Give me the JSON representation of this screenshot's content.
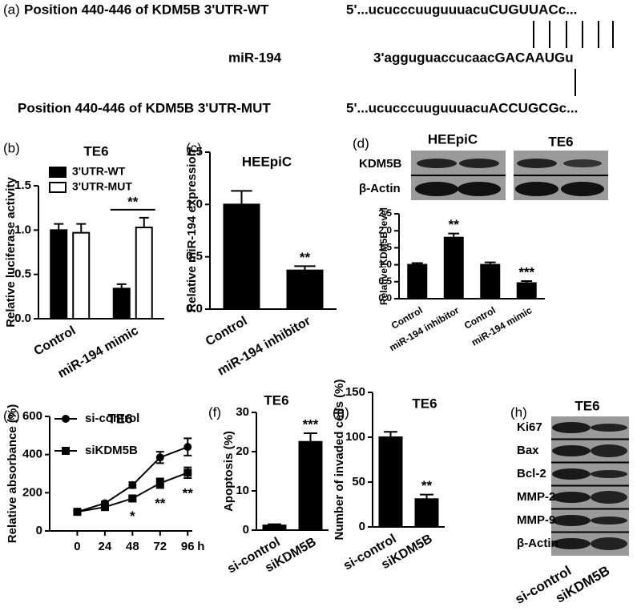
{
  "sequence": {
    "panel": "(a)",
    "rows": [
      {
        "label": "Position 440-446 of KDM5B 3'UTR-WT",
        "sequence": "5'...ucucccuuguuuacuCUGUUACc..."
      },
      {
        "label": "miR-194",
        "sequence": "3'agguguaccucaacGACAAUGu"
      },
      {
        "label": "Position 440-446 of KDM5B 3'UTR-MUT",
        "sequence": "5'...ucucccuuguuuacuACCUGCGc..."
      }
    ]
  },
  "blots": {
    "d": {
      "panel": "(d)",
      "titles": [
        "HEEpiC",
        "TE6"
      ],
      "rows": [
        "KDM5B",
        "β-Actin"
      ]
    },
    "h": {
      "panel": "(h)",
      "title": "TE6",
      "rows": [
        "Ki67",
        "Bax",
        "Bcl-2",
        "MMP-2",
        "MMP-9",
        "β-Actin"
      ],
      "columns": [
        "si-control",
        "siKDM5B"
      ]
    }
  },
  "chart_data": [
    {
      "type": "bar",
      "panel": "(b)",
      "title": "TE6",
      "y_label": "Relative luciferase activity",
      "categories": [
        "Control",
        "miR-194 mimic"
      ],
      "series": [
        {
          "name": "3'UTR-WT",
          "color": "#000000",
          "values": [
            1.0,
            0.34
          ],
          "errors": [
            0.07,
            0.05
          ]
        },
        {
          "name": "3'UTR-MUT",
          "color": "#ffffff",
          "values": [
            0.97,
            1.03
          ],
          "errors": [
            0.1,
            0.11
          ]
        }
      ],
      "significance": [
        null,
        "**"
      ],
      "ylim": [
        0,
        1.5
      ],
      "yticks": [
        {
          "value": 0,
          "label": "0.0"
        },
        0.5,
        {
          "value": 1,
          "label": "1.0"
        },
        1.5
      ]
    },
    {
      "type": "bar",
      "panel": "(c)",
      "title": "HEEpiC",
      "y_label": "Relative miR-194 expression",
      "categories": [
        "Control",
        "miR-194 inhibitor"
      ],
      "color": "#000000",
      "values": [
        1.0,
        0.37
      ],
      "errors": [
        0.13,
        0.04
      ],
      "significance": [
        null,
        "**"
      ],
      "ylim": [
        0,
        1.5
      ],
      "yticks": [
        {
          "value": 0,
          "label": "0.0"
        },
        0.5,
        {
          "value": 1,
          "label": "1.0"
        },
        1.5
      ]
    },
    {
      "type": "bar",
      "y_label": "Relative KDM5B level",
      "categories": [
        "Control",
        "miR-194 inhibitor",
        "Control",
        "miR-194 mimic"
      ],
      "color": "#000000",
      "values": [
        1.0,
        1.8,
        1.0,
        0.46
      ],
      "errors": [
        0.05,
        0.12,
        0.07,
        0.06
      ],
      "significance": [
        null,
        "**",
        null,
        "***"
      ],
      "ylim": [
        0,
        2.5
      ],
      "yticks": [
        {
          "value": 0,
          "label": "0.0"
        },
        0.5,
        {
          "value": 1,
          "label": "1.0"
        },
        1.5,
        {
          "value": 2,
          "label": "2.0"
        },
        2.5
      ]
    },
    {
      "type": "line",
      "panel": "(e)",
      "title": "TE6",
      "y_label": "Relative absorbance (%)",
      "x_unit": "h",
      "x": [
        0,
        24,
        48,
        72,
        96
      ],
      "series": [
        {
          "name": "si-control",
          "color": "#000000",
          "marker": "circle",
          "values": [
            100,
            145,
            240,
            385,
            440
          ],
          "errors": [
            5,
            10,
            15,
            30,
            45
          ]
        },
        {
          "name": "siKDM5B",
          "color": "#000000",
          "marker": "square",
          "values": [
            100,
            125,
            170,
            250,
            305
          ],
          "errors": [
            5,
            8,
            12,
            25,
            28
          ]
        }
      ],
      "significance": [
        null,
        null,
        "*",
        "**",
        "**"
      ],
      "xlim": [
        -24,
        100
      ],
      "xticks": [
        0,
        24,
        48,
        72,
        96
      ],
      "ylim": [
        0,
        600
      ],
      "yticks": [
        0,
        200,
        400,
        600
      ]
    },
    {
      "type": "bar",
      "panel": "(f)",
      "title": "TE6",
      "y_label": "Apoptosis (%)",
      "categories": [
        "si-control",
        "siKDM5B"
      ],
      "color": "#000000",
      "values": [
        1.2,
        22.5
      ],
      "errors": [
        0.3,
        2.2
      ],
      "significance": [
        null,
        "***"
      ],
      "ylim": [
        0,
        30
      ],
      "yticks": [
        0,
        10,
        20,
        30
      ]
    },
    {
      "type": "bar",
      "panel": "(g)",
      "title": "TE6",
      "y_label": "Number of invaded cells (%)",
      "categories": [
        "si-control",
        "siKDM5B"
      ],
      "color": "#000000",
      "values": [
        100,
        31
      ],
      "errors": [
        6,
        5
      ],
      "significance": [
        null,
        "**"
      ],
      "ylim": [
        0,
        150
      ],
      "yticks": [
        0,
        50,
        100,
        150
      ]
    }
  ]
}
